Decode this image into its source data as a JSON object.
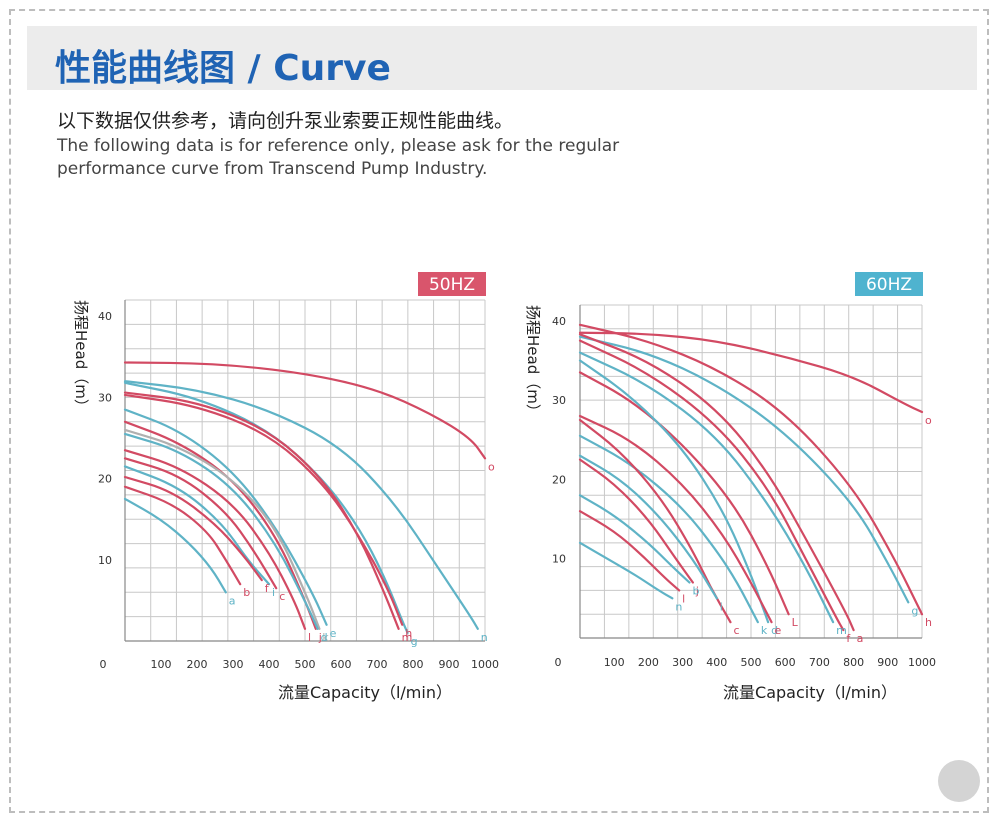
{
  "header": {
    "title": "性能曲线图 / Curve",
    "note_cn": "以下数据仅供参考，请向创升泵业索要正规性能曲线。",
    "note_en_line1": "The following data is for reference only, please ask for the regular",
    "note_en_line2": "performance curve from Transcend Pump Industry."
  },
  "colors": {
    "red": "#d24a63",
    "blue": "#5fb3c6",
    "grey": "#b0b0b0",
    "title_blue": "#1f63b4",
    "badge_red": "#d9556c",
    "badge_blue": "#4fb3cf"
  },
  "chart_data": [
    {
      "type": "line",
      "badge": "50HZ",
      "badge_color": "#d9556c",
      "ylabel": "扬程Head（m）",
      "xlabel": "流量Capacity（l/min）",
      "xlim": [
        0,
        1000
      ],
      "ylim": [
        0,
        42
      ],
      "xticks": [
        0,
        100,
        200,
        300,
        400,
        500,
        600,
        700,
        800,
        900,
        1000
      ],
      "yticks": [
        10,
        20,
        30,
        40
      ],
      "grid": true,
      "series": [
        {
          "name": "o",
          "color": "red",
          "points": [
            [
              0,
              34.3
            ],
            [
              250,
              34.2
            ],
            [
              500,
              33
            ],
            [
              700,
              31
            ],
            [
              850,
              28
            ],
            [
              960,
              25
            ],
            [
              1000,
              22.5
            ]
          ]
        },
        {
          "name": "n",
          "color": "blue",
          "points": [
            [
              0,
              32
            ],
            [
              200,
              31
            ],
            [
              400,
              28.5
            ],
            [
              600,
              24
            ],
            [
              750,
              17
            ],
            [
              870,
              9
            ],
            [
              960,
              3
            ],
            [
              980,
              1.5
            ]
          ]
        },
        {
          "name": "g",
          "color": "blue",
          "points": [
            [
              0,
              31.8
            ],
            [
              200,
              30
            ],
            [
              400,
              26
            ],
            [
              550,
              20
            ],
            [
              650,
              14
            ],
            [
              720,
              8
            ],
            [
              770,
              2.5
            ],
            [
              785,
              1
            ]
          ]
        },
        {
          "name": "m",
          "color": "red",
          "points": [
            [
              0,
              30.6
            ],
            [
              200,
              29.5
            ],
            [
              400,
              26
            ],
            [
              550,
              20
            ],
            [
              650,
              13
            ],
            [
              720,
              6
            ],
            [
              760,
              1.5
            ]
          ]
        },
        {
          "name": "h",
          "color": "red",
          "points": [
            [
              0,
              30.3
            ],
            [
              200,
              29
            ],
            [
              400,
              25.5
            ],
            [
              550,
              19.5
            ],
            [
              650,
              13
            ],
            [
              730,
              6.5
            ],
            [
              770,
              2
            ]
          ]
        },
        {
          "name": "j",
          "color": "red",
          "points": [
            [
              0,
              27
            ],
            [
              150,
              24.5
            ],
            [
              300,
              20
            ],
            [
              420,
              13
            ],
            [
              500,
              5
            ],
            [
              530,
              1.5
            ]
          ]
        },
        {
          "name": "e",
          "color": "blue",
          "points": [
            [
              0,
              28.5
            ],
            [
              150,
              26
            ],
            [
              300,
              21
            ],
            [
              420,
              14
            ],
            [
              520,
              6
            ],
            [
              560,
              2
            ]
          ]
        },
        {
          "name": "k",
          "color": "grey",
          "points": [
            [
              0,
              26
            ],
            [
              150,
              24
            ],
            [
              300,
              20
            ],
            [
              420,
              14
            ],
            [
              510,
              5
            ],
            [
              540,
              1.5
            ]
          ]
        },
        {
          "name": "d",
          "color": "blue",
          "points": [
            [
              0,
              25.5
            ],
            [
              150,
              23.5
            ],
            [
              300,
              19
            ],
            [
              420,
              12
            ],
            [
              510,
              4
            ],
            [
              535,
              1.5
            ]
          ]
        },
        {
          "name": "l",
          "color": "red",
          "points": [
            [
              0,
              23.5
            ],
            [
              150,
              21.5
            ],
            [
              300,
              17
            ],
            [
              400,
              11
            ],
            [
              470,
              5
            ],
            [
              500,
              1.5
            ]
          ]
        },
        {
          "name": "c",
          "color": "red",
          "points": [
            [
              0,
              22.5
            ],
            [
              150,
              20.5
            ],
            [
              280,
              16
            ],
            [
              360,
              11
            ],
            [
              420,
              6.5
            ]
          ]
        },
        {
          "name": "i",
          "color": "blue",
          "points": [
            [
              0,
              21.5
            ],
            [
              150,
              19
            ],
            [
              270,
              14.5
            ],
            [
              340,
              10
            ],
            [
              400,
              7
            ]
          ]
        },
        {
          "name": "f",
          "color": "red",
          "points": [
            [
              0,
              20.2
            ],
            [
              130,
              18.5
            ],
            [
              250,
              14.5
            ],
            [
              330,
              10.5
            ],
            [
              380,
              7.5
            ]
          ]
        },
        {
          "name": "b",
          "color": "red",
          "points": [
            [
              0,
              19
            ],
            [
              130,
              17
            ],
            [
              230,
              13.5
            ],
            [
              280,
              10
            ],
            [
              320,
              7
            ]
          ]
        },
        {
          "name": "a",
          "color": "blue",
          "points": [
            [
              0,
              17.5
            ],
            [
              100,
              15
            ],
            [
              180,
              12
            ],
            [
              240,
              9
            ],
            [
              280,
              6
            ]
          ]
        }
      ],
      "curve_labels": [
        "o",
        "n",
        "g",
        "m",
        "h",
        "j",
        "e",
        "k",
        "d",
        "l",
        "c",
        "i",
        "f",
        "b",
        "a"
      ]
    },
    {
      "type": "line",
      "badge": "60HZ",
      "badge_color": "#4fb3cf",
      "ylabel": "扬程Head（m）",
      "xlabel": "流量Capacity（l/min）",
      "xlim": [
        0,
        1000
      ],
      "ylim": [
        0,
        42
      ],
      "xticks": [
        0,
        100,
        200,
        300,
        400,
        500,
        600,
        700,
        800,
        900,
        1000
      ],
      "yticks": [
        10,
        20,
        30,
        40
      ],
      "grid": true,
      "series": [
        {
          "name": "o",
          "color": "red",
          "points": [
            [
              0,
              38.5
            ],
            [
              200,
              38.4
            ],
            [
              400,
              37.5
            ],
            [
              600,
              35.5
            ],
            [
              800,
              33
            ],
            [
              950,
              29.5
            ],
            [
              1000,
              28.5
            ]
          ]
        },
        {
          "name": "h",
          "color": "red",
          "points": [
            [
              0,
              39.5
            ],
            [
              200,
              37.5
            ],
            [
              400,
              34
            ],
            [
              600,
              28.5
            ],
            [
              800,
              19
            ],
            [
              920,
              10
            ],
            [
              1000,
              3
            ]
          ]
        },
        {
          "name": "g",
          "color": "blue",
          "points": [
            [
              0,
              38
            ],
            [
              200,
              36
            ],
            [
              400,
              32
            ],
            [
              600,
              26
            ],
            [
              800,
              17
            ],
            [
              900,
              9.5
            ],
            [
              960,
              4.5
            ]
          ]
        },
        {
          "name": "a",
          "color": "red",
          "points": [
            [
              0,
              38.3
            ],
            [
              200,
              35
            ],
            [
              400,
              29
            ],
            [
              550,
              21
            ],
            [
              680,
              11
            ],
            [
              780,
              3
            ],
            [
              800,
              1
            ]
          ]
        },
        {
          "name": "f",
          "color": "red",
          "points": [
            [
              0,
              37.5
            ],
            [
              200,
              33.5
            ],
            [
              400,
              27
            ],
            [
              550,
              19
            ],
            [
              660,
              10
            ],
            [
              750,
              2.5
            ],
            [
              770,
              1
            ]
          ]
        },
        {
          "name": "m",
          "color": "blue",
          "points": [
            [
              0,
              36
            ],
            [
              200,
              32
            ],
            [
              400,
              25.5
            ],
            [
              550,
              17
            ],
            [
              660,
              9
            ],
            [
              740,
              2
            ]
          ]
        },
        {
          "name": "L",
          "color": "red",
          "points": [
            [
              0,
              33.5
            ],
            [
              150,
              30
            ],
            [
              300,
              24.5
            ],
            [
              450,
              17
            ],
            [
              550,
              9
            ],
            [
              610,
              3
            ]
          ]
        },
        {
          "name": "d",
          "color": "blue",
          "points": [
            [
              0,
              35
            ],
            [
              150,
              30.5
            ],
            [
              300,
              24
            ],
            [
              420,
              16
            ],
            [
              500,
              8
            ],
            [
              550,
              2
            ]
          ]
        },
        {
          "name": "e",
          "color": "red",
          "points": [
            [
              0,
              28
            ],
            [
              150,
              25
            ],
            [
              300,
              19.5
            ],
            [
              420,
              13
            ],
            [
              500,
              7
            ],
            [
              560,
              2
            ]
          ]
        },
        {
          "name": "k",
          "color": "blue",
          "points": [
            [
              0,
              25.5
            ],
            [
              150,
              22
            ],
            [
              300,
              16.5
            ],
            [
              400,
              11
            ],
            [
              460,
              7
            ],
            [
              520,
              2
            ]
          ]
        },
        {
          "name": "c",
          "color": "red",
          "points": [
            [
              0,
              27.5
            ],
            [
              120,
              23.5
            ],
            [
              240,
              17.5
            ],
            [
              330,
              11
            ],
            [
              380,
              6.5
            ],
            [
              440,
              2
            ]
          ]
        },
        {
          "name": "i",
          "color": "blue",
          "points": [
            [
              0,
              23
            ],
            [
              120,
              20
            ],
            [
              230,
              15.5
            ],
            [
              330,
              10
            ],
            [
              400,
              5
            ]
          ]
        },
        {
          "name": "j",
          "color": "red",
          "points": [
            [
              0,
              22.5
            ],
            [
              100,
              19.5
            ],
            [
              200,
              15
            ],
            [
              280,
              10
            ],
            [
              330,
              7
            ]
          ]
        },
        {
          "name": "b",
          "color": "blue",
          "points": [
            [
              0,
              18
            ],
            [
              100,
              15.5
            ],
            [
              200,
              12
            ],
            [
              270,
              9
            ],
            [
              320,
              7
            ]
          ]
        },
        {
          "name": "l",
          "color": "red",
          "points": [
            [
              0,
              16
            ],
            [
              100,
              13.5
            ],
            [
              180,
              10.5
            ],
            [
              250,
              7.5
            ],
            [
              290,
              6
            ]
          ]
        },
        {
          "name": "n",
          "color": "blue",
          "points": [
            [
              0,
              12
            ],
            [
              80,
              10
            ],
            [
              160,
              8
            ],
            [
              230,
              6
            ],
            [
              270,
              5
            ]
          ]
        }
      ],
      "curve_labels": [
        "o",
        "h",
        "g",
        "a",
        "f",
        "m",
        "L",
        "d",
        "e",
        "k",
        "c",
        "i",
        "j",
        "b",
        "l",
        "n"
      ]
    }
  ]
}
